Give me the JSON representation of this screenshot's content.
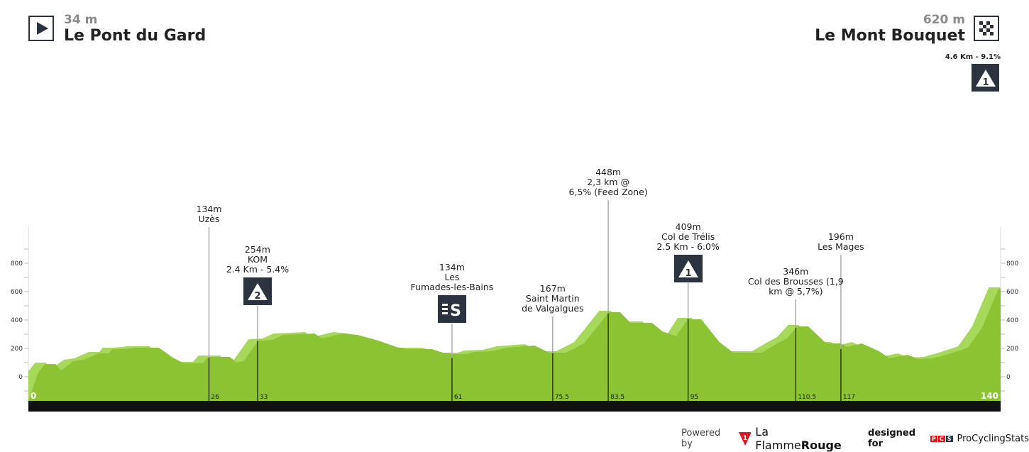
{
  "start": {
    "altitude": "34 m",
    "name": "Le Pont du Gard",
    "icon": "play-flag-icon"
  },
  "finish": {
    "altitude": "620 m",
    "name": "Le Mont Bouquet",
    "icon": "checkered-flag-icon",
    "climb": "4.6 Km - 9.1%",
    "climb_category": "1"
  },
  "footer": {
    "powered_by": "Powered by",
    "brand": "La Flamme",
    "brand_bold": "Rouge",
    "brand_badge": "1",
    "designed_for": "designed for",
    "pcs_letters": [
      "P",
      "C",
      "S"
    ],
    "pcs_name": "ProCyclingStats"
  },
  "colors": {
    "profile": "#8cc332",
    "profile_light": "#a6d85a",
    "marker_dark": "#2b3340",
    "baseline": "#111111"
  },
  "chart_data": {
    "type": "area",
    "xlabel": "",
    "ylabel": "",
    "xlim": [
      0,
      140
    ],
    "ylim": [
      -160,
      1000
    ],
    "y_ticks": [
      0,
      200,
      400,
      600,
      800
    ],
    "x_end_labels": [
      "0",
      "140"
    ],
    "profile": [
      [
        0,
        40
      ],
      [
        1,
        100
      ],
      [
        2.5,
        100
      ],
      [
        3.3,
        55
      ],
      [
        5.1,
        120
      ],
      [
        6.6,
        130
      ],
      [
        8.7,
        175
      ],
      [
        10.2,
        175
      ],
      [
        10.7,
        205
      ],
      [
        12.3,
        205
      ],
      [
        14.3,
        215
      ],
      [
        17.4,
        215
      ],
      [
        19.4,
        145
      ],
      [
        21,
        105
      ],
      [
        23.7,
        105
      ],
      [
        24.5,
        150
      ],
      [
        27.6,
        150
      ],
      [
        28.6,
        110
      ],
      [
        29.6,
        120
      ],
      [
        31.7,
        265
      ],
      [
        33.7,
        270
      ],
      [
        35.3,
        305
      ],
      [
        39.8,
        315
      ],
      [
        40.9,
        280
      ],
      [
        43.9,
        315
      ],
      [
        46,
        305
      ],
      [
        49,
        265
      ],
      [
        51.6,
        220
      ],
      [
        53,
        205
      ],
      [
        56.7,
        205
      ],
      [
        58.3,
        180
      ],
      [
        59.8,
        170
      ],
      [
        61.8,
        170
      ],
      [
        62.8,
        185
      ],
      [
        65.4,
        190
      ],
      [
        67.4,
        215
      ],
      [
        71.5,
        230
      ],
      [
        73.6,
        180
      ],
      [
        76,
        180
      ],
      [
        78.6,
        245
      ],
      [
        82.2,
        465
      ],
      [
        83.8,
        465
      ],
      [
        85.3,
        390
      ],
      [
        88.4,
        390
      ],
      [
        89.9,
        330
      ],
      [
        91.9,
        295
      ],
      [
        93.5,
        415
      ],
      [
        95.5,
        415
      ],
      [
        98.1,
        255
      ],
      [
        100.1,
        180
      ],
      [
        104.2,
        180
      ],
      [
        106.3,
        240
      ],
      [
        107.8,
        280
      ],
      [
        109.4,
        365
      ],
      [
        110.9,
        365
      ],
      [
        113.5,
        245
      ],
      [
        115.5,
        245
      ],
      [
        116.5,
        220
      ],
      [
        118.6,
        245
      ],
      [
        121.1,
        190
      ],
      [
        122.6,
        140
      ],
      [
        125.2,
        165
      ],
      [
        126.8,
        135
      ],
      [
        128.8,
        140
      ],
      [
        130.8,
        165
      ],
      [
        133.9,
        215
      ],
      [
        135.9,
        355
      ],
      [
        138.3,
        630
      ],
      [
        140,
        630
      ]
    ],
    "markers": [
      {
        "km": "26",
        "elev": 134,
        "lines": [
          "134m",
          "Uzès"
        ],
        "badge": null
      },
      {
        "km": "33",
        "elev": 254,
        "lines": [
          "254m",
          "KOM",
          "2.4 Km - 5.4%"
        ],
        "badge": "kom-2"
      },
      {
        "km": "61",
        "elev": 134,
        "lines": [
          "134m",
          "Les",
          "Fumades-les-Bains"
        ],
        "badge": "sprint"
      },
      {
        "km": "75.5",
        "elev": 167,
        "lines": [
          "167m",
          "Saint Martin",
          "de Valgalgues"
        ],
        "badge": null
      },
      {
        "km": "83.5",
        "elev": 448,
        "lines": [
          "448m",
          "2,3 km @",
          "6,5% (Feed Zone)"
        ],
        "badge": null
      },
      {
        "km": "95",
        "elev": 409,
        "lines": [
          "409m",
          "Col de Trélis",
          "2.5 Km - 6.0%"
        ],
        "badge": "kom-1"
      },
      {
        "km": "110.5",
        "elev": 346,
        "lines": [
          "346m",
          "Col des Brousses (1,9",
          "km @ 5,7%)"
        ],
        "badge": null
      },
      {
        "km": "117",
        "elev": 196,
        "lines": [
          "196m",
          "Les Mages"
        ],
        "badge": null
      }
    ]
  }
}
